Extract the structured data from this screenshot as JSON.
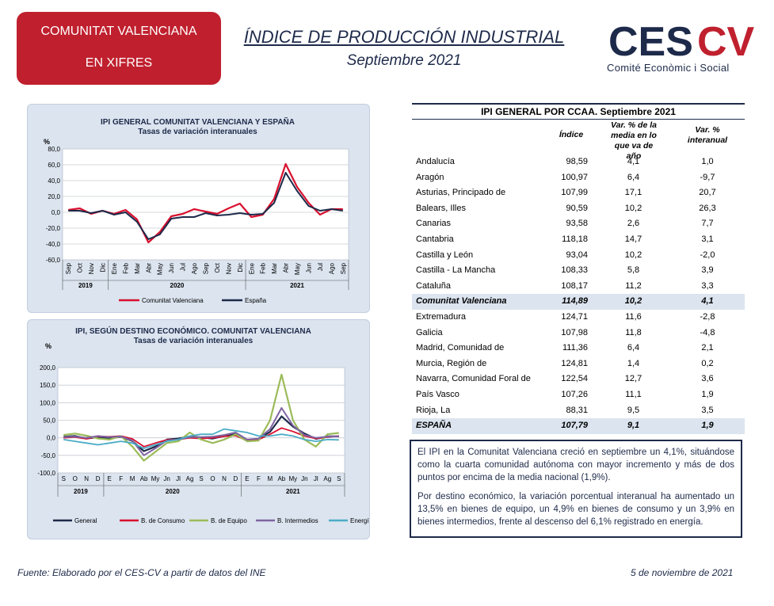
{
  "badge": {
    "line1": "COMUNITAT VALENCIANA",
    "line2": "EN XIFRES",
    "color": "#c0202e"
  },
  "header": {
    "title": "ÍNDICE DE PRODUCCIÓN INDUSTRIAL",
    "subtitle": "Septiembre 2021"
  },
  "logo": {
    "letters_dark": "CES",
    "letters_red": "CV",
    "tagline": "Comité Econòmic i Social"
  },
  "colors": {
    "red": "#d9102e",
    "navy": "#1e2a4a",
    "green": "#9bbb59",
    "purple": "#8064a2",
    "teal": "#4bacc6",
    "panel": "#dbe4ef"
  },
  "chart_data": [
    {
      "type": "line",
      "title": "IPI GENERAL COMUNITAT VALENCIANA Y ESPAÑA",
      "subtitle": "Tasas de variación interanuales",
      "ylabel": "%",
      "ylim": [
        -60,
        80
      ],
      "yticks": [
        "80,0",
        "60,0",
        "40,0",
        "20,0",
        "0,0",
        "-20,0",
        "-40,0",
        "-60,0"
      ],
      "categories": [
        "Sep",
        "Oct",
        "Nov",
        "Dic",
        "Ene",
        "Feb",
        "Mar",
        "Abr",
        "May",
        "Jun",
        "Jul",
        "Ago",
        "Sep",
        "Oct",
        "Nov",
        "Dic",
        "Ene",
        "Feb",
        "Mar",
        "Abr",
        "May",
        "Jun",
        "Jul",
        "Ago",
        "Sep"
      ],
      "years": [
        {
          "label": "2019",
          "from": 0,
          "to": 3
        },
        {
          "label": "2020",
          "from": 4,
          "to": 15
        },
        {
          "label": "2021",
          "from": 16,
          "to": 24
        }
      ],
      "legend_position": "bottom",
      "grid": true,
      "series": [
        {
          "name": "Comunitat Valenciana",
          "color": "#d9102e",
          "values": [
            3,
            5,
            -2,
            2,
            -2,
            3,
            -9,
            -38,
            -25,
            -5,
            -2,
            4,
            1,
            -2,
            5,
            11,
            -6,
            -3,
            17,
            61,
            32,
            12,
            -3,
            4,
            4
          ]
        },
        {
          "name": "España",
          "color": "#1e2a4a",
          "values": [
            2,
            2,
            -1,
            2,
            -3,
            0,
            -12,
            -34,
            -28,
            -8,
            -6,
            -6,
            -1,
            -4,
            -3,
            -1,
            -3,
            -2,
            12,
            50,
            27,
            8,
            2,
            4,
            2
          ]
        }
      ]
    },
    {
      "type": "line",
      "title": "IPI, SEGÚN DESTINO ECONÓMICO. COMUNITAT VALENCIANA",
      "subtitle": "Tasas de variación interanuales",
      "ylabel": "%",
      "ylim": [
        -100,
        200
      ],
      "yticks": [
        "200,0",
        "150,0",
        "100,0",
        "50,0",
        "0,0",
        "-50,0",
        "-100,0"
      ],
      "categories": [
        "S",
        "O",
        "N",
        "D",
        "E",
        "F",
        "M",
        "Ab",
        "My",
        "Jn",
        "Jl",
        "Ag",
        "S",
        "O",
        "N",
        "D",
        "E",
        "F",
        "M",
        "Ab",
        "My",
        "Jn",
        "Jl",
        "Ag",
        "S"
      ],
      "years": [
        {
          "label": "2019",
          "from": 0,
          "to": 3
        },
        {
          "label": "2020",
          "from": 4,
          "to": 15
        },
        {
          "label": "2021",
          "from": 16,
          "to": 24
        }
      ],
      "legend_position": "bottom",
      "grid": true,
      "series": [
        {
          "name": "General",
          "color": "#1e2a4a",
          "values": [
            3,
            5,
            -2,
            2,
            -2,
            3,
            -9,
            -38,
            -25,
            -5,
            -2,
            4,
            1,
            -2,
            5,
            11,
            -6,
            -3,
            17,
            61,
            32,
            12,
            -3,
            4,
            4
          ]
        },
        {
          "name": "B. de Consumo",
          "color": "#d9102e",
          "values": [
            0,
            2,
            -3,
            4,
            3,
            5,
            -3,
            -25,
            -15,
            -6,
            -5,
            0,
            -2,
            0,
            4,
            6,
            -8,
            -5,
            10,
            28,
            18,
            5,
            -2,
            2,
            5
          ]
        },
        {
          "name": "B. de Equipo",
          "color": "#9bbb59",
          "values": [
            8,
            12,
            6,
            -2,
            -5,
            5,
            -25,
            -65,
            -40,
            -15,
            -10,
            15,
            -5,
            -15,
            -5,
            10,
            -10,
            -8,
            50,
            180,
            50,
            -5,
            -25,
            10,
            14
          ]
        },
        {
          "name": "B. Intermedios",
          "color": "#8064a2",
          "values": [
            2,
            3,
            0,
            5,
            2,
            4,
            -8,
            -50,
            -30,
            -8,
            -5,
            2,
            2,
            3,
            8,
            15,
            -5,
            -2,
            25,
            85,
            35,
            8,
            0,
            3,
            4
          ]
        },
        {
          "name": "Energía",
          "color": "#4bacc6",
          "values": [
            -5,
            -10,
            -15,
            -20,
            -15,
            -10,
            -15,
            -30,
            -20,
            -10,
            -5,
            5,
            10,
            10,
            25,
            20,
            15,
            5,
            5,
            10,
            5,
            -5,
            -10,
            -5,
            -6
          ]
        }
      ]
    }
  ],
  "table": {
    "title": "IPI GENERAL POR CCAA. Septiembre 2021",
    "columns": [
      "Índice",
      "Var. % de la media en lo que va de año",
      "Var. % interanual"
    ],
    "rows": [
      {
        "region": "Andalucía",
        "indice": "98,59",
        "media": "4,1",
        "inter": "1,0"
      },
      {
        "region": "Aragón",
        "indice": "100,97",
        "media": "6,4",
        "inter": "-9,7"
      },
      {
        "region": "Asturias, Principado de",
        "indice": "107,99",
        "media": "17,1",
        "inter": "20,7"
      },
      {
        "region": "Balears, Illes",
        "indice": "90,59",
        "media": "10,2",
        "inter": "26,3"
      },
      {
        "region": "Canarias",
        "indice": "93,58",
        "media": "2,6",
        "inter": "7,7"
      },
      {
        "region": "Cantabria",
        "indice": "118,18",
        "media": "14,7",
        "inter": "3,1"
      },
      {
        "region": "Castilla y León",
        "indice": "93,04",
        "media": "10,2",
        "inter": "-2,0"
      },
      {
        "region": "Castilla - La Mancha",
        "indice": "108,33",
        "media": "5,8",
        "inter": "3,9"
      },
      {
        "region": "Cataluña",
        "indice": "108,17",
        "media": "11,2",
        "inter": "3,3"
      },
      {
        "region": "Comunitat Valenciana",
        "indice": "114,89",
        "media": "10,2",
        "inter": "4,1",
        "highlight": true
      },
      {
        "region": "Extremadura",
        "indice": "124,71",
        "media": "11,6",
        "inter": "-2,8"
      },
      {
        "region": "Galicia",
        "indice": "107,98",
        "media": "11,8",
        "inter": "-4,8"
      },
      {
        "region": "Madrid, Comunidad de",
        "indice": "111,36",
        "media": "6,4",
        "inter": "2,1"
      },
      {
        "region": "Murcia, Región de",
        "indice": "124,81",
        "media": "1,4",
        "inter": "0,2"
      },
      {
        "region": "Navarra, Comunidad Foral de",
        "indice": "122,54",
        "media": "12,7",
        "inter": "3,6"
      },
      {
        "region": "País Vasco",
        "indice": "107,26",
        "media": "11,1",
        "inter": "1,9"
      },
      {
        "region": "Rioja, La",
        "indice": "88,31",
        "media": "9,5",
        "inter": "3,5"
      },
      {
        "region": "ESPAÑA",
        "indice": "107,79",
        "media": "9,1",
        "inter": "1,9",
        "highlight": true
      }
    ]
  },
  "note": {
    "p1": "El IPI en la Comunitat Valenciana creció en septiembre un 4,1%, situándose como la cuarta comunidad autónoma con mayor incremento y más de dos puntos por encima de la media nacional (1,9%).",
    "p2": "Por destino económico, la variación porcentual interanual ha aumentado un 13,5% en bienes de equipo, un 4,9% en bienes de consumo y un 3,9% en bienes intermedios, frente al descenso del 6,1% registrado en energía."
  },
  "footer": {
    "source": "Fuente: Elaborado por el CES-CV a partir de datos del INE",
    "date": "5 de noviembre de 2021"
  }
}
